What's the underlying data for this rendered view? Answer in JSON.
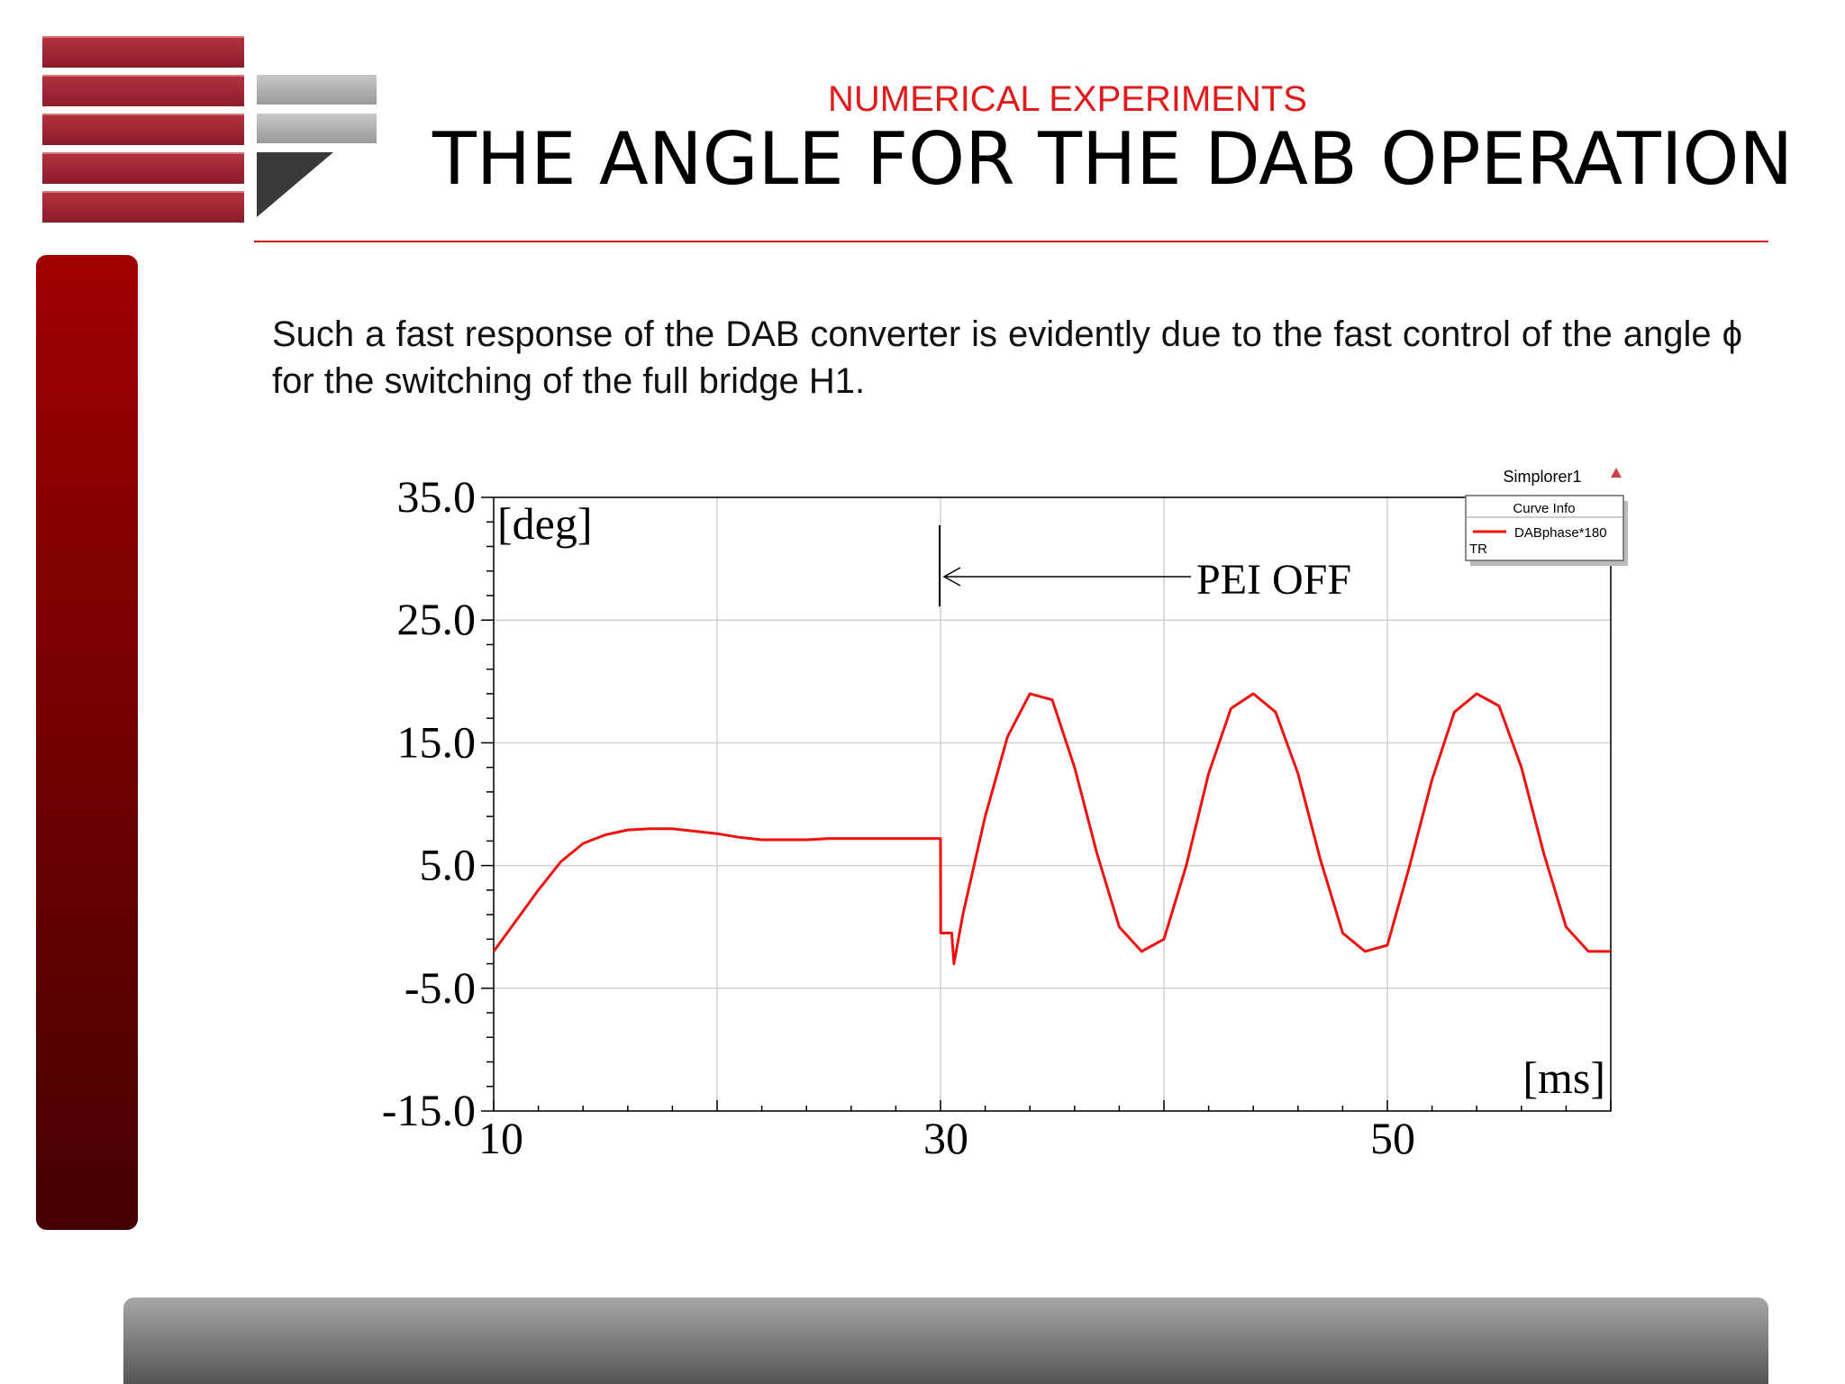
{
  "slide": {
    "subtitle": "NUMERICAL EXPERIMENTS",
    "title": "THE ANGLE FOR THE DAB OPERATION",
    "body": "Such a fast response of the DAB converter is evidently due to the fast control of the angle ϕ for the switching of the full bridge H1."
  },
  "colors": {
    "accent_red": "#e01b1b",
    "side_bar": "#a00000",
    "curve": "#ee1111"
  },
  "chart_data": {
    "type": "line",
    "ylabel": "[deg]",
    "xlabel": "[ms]",
    "xlim": [
      10,
      60
    ],
    "ylim": [
      -15,
      35
    ],
    "y_ticks": [
      "35.0",
      "25.0",
      "15.0",
      "5.0",
      "-5.0",
      "-15.0"
    ],
    "x_ticks": [
      "10",
      "30",
      "50"
    ],
    "grid": true,
    "annotation": {
      "text": "PEI OFF",
      "x": 30
    },
    "legend": {
      "title": "Simplorer1",
      "header": "Curve Info",
      "series_name": "DABphase*180",
      "footer": "TR"
    },
    "series": [
      {
        "name": "DABphase*180",
        "x": [
          10,
          11,
          12,
          13,
          14,
          15,
          16,
          17,
          18,
          19,
          20,
          21,
          22,
          23,
          24,
          25,
          26,
          27,
          28,
          29,
          30,
          30.01,
          30.5,
          30.6,
          31,
          32,
          33,
          34,
          35,
          36,
          37,
          38,
          39,
          40,
          41,
          42,
          43,
          44,
          45,
          46,
          47,
          48,
          49,
          50,
          51,
          52,
          53,
          54,
          55,
          56,
          57,
          58,
          59,
          60
        ],
        "y": [
          -2.0,
          0.5,
          3.0,
          5.3,
          6.8,
          7.5,
          7.9,
          8.0,
          8.0,
          7.8,
          7.6,
          7.3,
          7.1,
          7.1,
          7.1,
          7.2,
          7.2,
          7.2,
          7.2,
          7.2,
          7.2,
          -0.5,
          -0.5,
          -3.0,
          1.0,
          9.0,
          15.5,
          19.0,
          18.5,
          13.0,
          6.0,
          0.0,
          -2.0,
          -1.0,
          5.0,
          12.5,
          17.8,
          19.0,
          17.5,
          12.5,
          5.5,
          -0.5,
          -2.0,
          -1.5,
          5.0,
          12.0,
          17.5,
          19.0,
          18.0,
          13.0,
          6.0,
          0.0,
          -2.0,
          -2.0
        ]
      }
    ]
  }
}
